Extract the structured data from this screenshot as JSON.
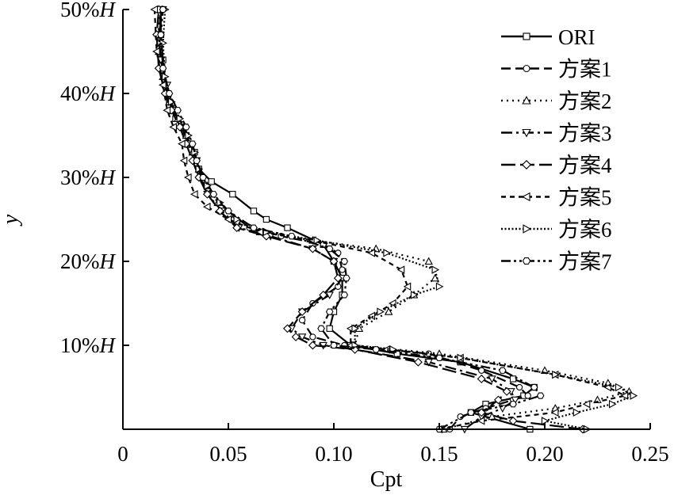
{
  "chart_data": {
    "type": "line",
    "xlabel": "Cpt",
    "ylabel": "y",
    "xlim": [
      0,
      0.25
    ],
    "ylim": [
      0,
      50
    ],
    "xticks": [
      {
        "value": 0,
        "label": "0"
      },
      {
        "value": 0.05,
        "label": "0.05"
      },
      {
        "value": 0.1,
        "label": "0.10"
      },
      {
        "value": 0.15,
        "label": "0.15"
      },
      {
        "value": 0.2,
        "label": "0.20"
      },
      {
        "value": 0.25,
        "label": "0.25"
      }
    ],
    "yticks": [
      {
        "value": 10,
        "label": "10%H"
      },
      {
        "value": 20,
        "label": "20%H"
      },
      {
        "value": 30,
        "label": "30%H"
      },
      {
        "value": 40,
        "label": "40%H"
      },
      {
        "value": 50,
        "label": "50%H"
      }
    ],
    "legend_position": "top-right",
    "series": [
      {
        "name": "ORI",
        "color": "#000000",
        "dash": "solid",
        "marker": "square",
        "points": [
          [
            0.193,
            0
          ],
          [
            0.165,
            2
          ],
          [
            0.172,
            3
          ],
          [
            0.19,
            4
          ],
          [
            0.195,
            5
          ],
          [
            0.185,
            6
          ],
          [
            0.16,
            8
          ],
          [
            0.13,
            9
          ],
          [
            0.108,
            10
          ],
          [
            0.098,
            12
          ],
          [
            0.1,
            14
          ],
          [
            0.104,
            16
          ],
          [
            0.104,
            18
          ],
          [
            0.1,
            20
          ],
          [
            0.095,
            22
          ],
          [
            0.078,
            24
          ],
          [
            0.068,
            25
          ],
          [
            0.062,
            26
          ],
          [
            0.052,
            28
          ],
          [
            0.042,
            29.5
          ],
          [
            0.036,
            31
          ],
          [
            0.034,
            33
          ],
          [
            0.03,
            35
          ],
          [
            0.025,
            37
          ],
          [
            0.022,
            39
          ],
          [
            0.02,
            41
          ],
          [
            0.019,
            44
          ],
          [
            0.018,
            47
          ],
          [
            0.018,
            50
          ]
        ]
      },
      {
        "name": "方案1",
        "color": "#000000",
        "dash": "dash",
        "marker": "circle",
        "points": [
          [
            0.155,
            0
          ],
          [
            0.16,
            1.5
          ],
          [
            0.172,
            2.5
          ],
          [
            0.185,
            3.5
          ],
          [
            0.192,
            4
          ],
          [
            0.188,
            5
          ],
          [
            0.17,
            7
          ],
          [
            0.145,
            9
          ],
          [
            0.105,
            10
          ],
          [
            0.09,
            11
          ],
          [
            0.085,
            13
          ],
          [
            0.09,
            15
          ],
          [
            0.102,
            17
          ],
          [
            0.104,
            19
          ],
          [
            0.102,
            21
          ],
          [
            0.095,
            22
          ],
          [
            0.075,
            23
          ],
          [
            0.06,
            24
          ],
          [
            0.05,
            26
          ],
          [
            0.042,
            28
          ],
          [
            0.036,
            30
          ],
          [
            0.034,
            32
          ],
          [
            0.031,
            34
          ],
          [
            0.028,
            36
          ],
          [
            0.024,
            38
          ],
          [
            0.021,
            40
          ],
          [
            0.018,
            44
          ],
          [
            0.017,
            47
          ],
          [
            0.018,
            50
          ]
        ]
      },
      {
        "name": "方案2",
        "color": "#000000",
        "dash": "dot",
        "marker": "triangle",
        "points": [
          [
            0.152,
            0
          ],
          [
            0.175,
            1.5
          ],
          [
            0.205,
            2.5
          ],
          [
            0.225,
            3.5
          ],
          [
            0.24,
            4.5
          ],
          [
            0.23,
            5.5
          ],
          [
            0.2,
            7
          ],
          [
            0.15,
            9
          ],
          [
            0.11,
            10
          ],
          [
            0.112,
            12
          ],
          [
            0.126,
            14
          ],
          [
            0.138,
            16
          ],
          [
            0.148,
            18
          ],
          [
            0.145,
            20
          ],
          [
            0.12,
            21.5
          ],
          [
            0.09,
            22.5
          ],
          [
            0.065,
            23.5
          ],
          [
            0.052,
            25
          ],
          [
            0.045,
            27
          ],
          [
            0.04,
            29
          ],
          [
            0.036,
            31
          ],
          [
            0.033,
            33
          ],
          [
            0.03,
            35
          ],
          [
            0.026,
            37
          ],
          [
            0.022,
            39
          ],
          [
            0.019,
            42
          ],
          [
            0.017,
            45
          ],
          [
            0.017,
            50
          ]
        ]
      },
      {
        "name": "方案3",
        "color": "#000000",
        "dash": "dashdot",
        "marker": "triangle-down",
        "points": [
          [
            0.162,
            0
          ],
          [
            0.17,
            1.5
          ],
          [
            0.18,
            2.5
          ],
          [
            0.186,
            3.5
          ],
          [
            0.184,
            4.5
          ],
          [
            0.175,
            6
          ],
          [
            0.145,
            8
          ],
          [
            0.11,
            9.5
          ],
          [
            0.095,
            10
          ],
          [
            0.085,
            11
          ],
          [
            0.08,
            12
          ],
          [
            0.085,
            14
          ],
          [
            0.098,
            16
          ],
          [
            0.104,
            18
          ],
          [
            0.1,
            20
          ],
          [
            0.09,
            21.5
          ],
          [
            0.07,
            23
          ],
          [
            0.055,
            24
          ],
          [
            0.047,
            26
          ],
          [
            0.04,
            28
          ],
          [
            0.037,
            30
          ],
          [
            0.035,
            32
          ],
          [
            0.032,
            34
          ],
          [
            0.029,
            36
          ],
          [
            0.024,
            38
          ],
          [
            0.021,
            41
          ],
          [
            0.018,
            44
          ],
          [
            0.017,
            47
          ],
          [
            0.019,
            50
          ]
        ]
      },
      {
        "name": "方案4",
        "color": "#000000",
        "dash": "longdash",
        "marker": "diamond",
        "points": [
          [
            0.218,
            0
          ],
          [
            0.185,
            1
          ],
          [
            0.17,
            2
          ],
          [
            0.178,
            3.5
          ],
          [
            0.182,
            4.5
          ],
          [
            0.17,
            6
          ],
          [
            0.14,
            8
          ],
          [
            0.11,
            9.5
          ],
          [
            0.09,
            10
          ],
          [
            0.082,
            11
          ],
          [
            0.078,
            12
          ],
          [
            0.085,
            14
          ],
          [
            0.095,
            16
          ],
          [
            0.102,
            18
          ],
          [
            0.1,
            20
          ],
          [
            0.09,
            21.5
          ],
          [
            0.068,
            23
          ],
          [
            0.054,
            24
          ],
          [
            0.046,
            26
          ],
          [
            0.04,
            28
          ],
          [
            0.036,
            30
          ],
          [
            0.033,
            32
          ],
          [
            0.03,
            34
          ],
          [
            0.027,
            36
          ],
          [
            0.023,
            38
          ],
          [
            0.02,
            40
          ],
          [
            0.017,
            43
          ],
          [
            0.016,
            47
          ],
          [
            0.017,
            50
          ]
        ]
      },
      {
        "name": "方案5",
        "color": "#000000",
        "dash": "shortdash",
        "marker": "triangle-left",
        "points": [
          [
            0.15,
            0
          ],
          [
            0.17,
            1
          ],
          [
            0.205,
            2
          ],
          [
            0.22,
            3
          ],
          [
            0.238,
            4
          ],
          [
            0.23,
            5
          ],
          [
            0.205,
            6.5
          ],
          [
            0.16,
            8.5
          ],
          [
            0.125,
            9.5
          ],
          [
            0.108,
            10
          ],
          [
            0.108,
            12
          ],
          [
            0.118,
            13.5
          ],
          [
            0.128,
            15
          ],
          [
            0.135,
            17
          ],
          [
            0.132,
            19
          ],
          [
            0.118,
            21
          ],
          [
            0.09,
            22.5
          ],
          [
            0.065,
            23.5
          ],
          [
            0.05,
            25
          ],
          [
            0.04,
            26.5
          ],
          [
            0.034,
            28
          ],
          [
            0.031,
            30
          ],
          [
            0.029,
            32
          ],
          [
            0.028,
            34
          ],
          [
            0.024,
            36
          ],
          [
            0.021,
            38
          ],
          [
            0.019,
            41
          ],
          [
            0.016,
            45
          ],
          [
            0.015,
            50
          ]
        ]
      },
      {
        "name": "方案6",
        "color": "#000000",
        "dash": "densedot",
        "marker": "triangle-right",
        "points": [
          [
            0.22,
            0
          ],
          [
            0.2,
            1
          ],
          [
            0.215,
            2
          ],
          [
            0.232,
            3
          ],
          [
            0.242,
            4
          ],
          [
            0.235,
            5
          ],
          [
            0.205,
            6.5
          ],
          [
            0.16,
            8.5
          ],
          [
            0.128,
            9.5
          ],
          [
            0.11,
            10
          ],
          [
            0.11,
            12
          ],
          [
            0.122,
            14
          ],
          [
            0.138,
            16
          ],
          [
            0.15,
            17
          ],
          [
            0.148,
            19
          ],
          [
            0.125,
            21
          ],
          [
            0.092,
            22.5
          ],
          [
            0.068,
            23.5
          ],
          [
            0.054,
            25
          ],
          [
            0.046,
            27
          ],
          [
            0.04,
            29
          ],
          [
            0.036,
            31
          ],
          [
            0.034,
            33
          ],
          [
            0.031,
            35
          ],
          [
            0.027,
            37
          ],
          [
            0.023,
            39
          ],
          [
            0.02,
            42
          ],
          [
            0.019,
            46
          ],
          [
            0.02,
            50
          ]
        ]
      },
      {
        "name": "方案7",
        "color": "#000000",
        "dash": "dashdotdot",
        "marker": "hexagon",
        "points": [
          [
            0.15,
            0
          ],
          [
            0.165,
            2
          ],
          [
            0.185,
            3
          ],
          [
            0.198,
            4
          ],
          [
            0.195,
            5
          ],
          [
            0.18,
            7
          ],
          [
            0.15,
            8.5
          ],
          [
            0.12,
            9.5
          ],
          [
            0.1,
            10
          ],
          [
            0.094,
            12
          ],
          [
            0.098,
            14
          ],
          [
            0.105,
            16
          ],
          [
            0.106,
            18
          ],
          [
            0.105,
            20
          ],
          [
            0.098,
            21.5
          ],
          [
            0.08,
            23
          ],
          [
            0.062,
            24
          ],
          [
            0.05,
            26
          ],
          [
            0.043,
            28
          ],
          [
            0.038,
            30
          ],
          [
            0.035,
            32
          ],
          [
            0.033,
            34
          ],
          [
            0.03,
            36
          ],
          [
            0.026,
            38
          ],
          [
            0.022,
            40
          ],
          [
            0.019,
            43
          ],
          [
            0.018,
            47
          ],
          [
            0.019,
            50
          ]
        ]
      }
    ]
  }
}
